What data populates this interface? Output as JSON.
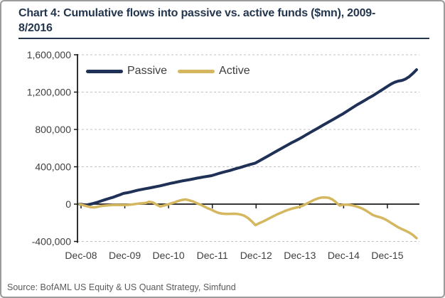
{
  "title": {
    "line1": "Chart 4: Cumulative flows into passive vs. active funds ($mn), 2009-",
    "line2": "8/2016"
  },
  "source": "Source: BofAML US Equity & US Quant Strategy, Simfund",
  "colors": {
    "title": "#23364e",
    "axis": "#1a1a1a",
    "grid": "#c0c0c0",
    "tick_text": "#3f3f3f",
    "source_text": "#5a5a5a",
    "border": "#9b9b9b",
    "passive": "#1f3156",
    "active": "#d4b75f"
  },
  "legend": {
    "passive_label": "Passive",
    "active_label": "Active",
    "position": "top-left"
  },
  "chart_data": {
    "type": "line",
    "title": "Chart 4: Cumulative flows into passive vs. active funds ($mn), 2009-8/2016",
    "xlabel": "",
    "ylabel": "",
    "frequency": "monthly",
    "x_start": "Dec-08",
    "x_end": "Aug-16",
    "xlabels": [
      "Dec-08",
      "Dec-09",
      "Dec-10",
      "Dec-11",
      "Dec-12",
      "Dec-13",
      "Dec-14",
      "Dec-15"
    ],
    "ylim": [
      -400000,
      1600000
    ],
    "yticks": [
      1600000,
      1200000,
      800000,
      400000,
      0,
      -400000
    ],
    "ytick_labels": [
      "1,600,000",
      "1,200,000",
      "800,000",
      "400,000",
      "0",
      "-400,000"
    ],
    "grid": "dashed-horizontal",
    "legend_position": "top-left",
    "series": [
      {
        "name": "Passive",
        "color": "#1f3156",
        "values": [
          0,
          -5000,
          -8000,
          0,
          10000,
          22000,
          35000,
          48000,
          60000,
          72000,
          86000,
          100000,
          115000,
          122000,
          130000,
          140000,
          150000,
          158000,
          165000,
          172000,
          180000,
          188000,
          196000,
          205000,
          215000,
          224000,
          232000,
          240000,
          248000,
          255000,
          262000,
          270000,
          278000,
          285000,
          292000,
          298000,
          305000,
          316000,
          328000,
          340000,
          350000,
          360000,
          372000,
          383000,
          394000,
          406000,
          418000,
          429000,
          440000,
          462000,
          484000,
          506000,
          528000,
          550000,
          572000,
          594000,
          616000,
          638000,
          660000,
          680000,
          700000,
          722000,
          745000,
          768000,
          790000,
          812000,
          835000,
          858000,
          880000,
          902000,
          925000,
          948000,
          970000,
          995000,
          1020000,
          1045000,
          1070000,
          1092000,
          1115000,
          1138000,
          1160000,
          1185000,
          1210000,
          1235000,
          1260000,
          1285000,
          1305000,
          1318000,
          1325000,
          1340000,
          1365000,
          1400000,
          1440000
        ]
      },
      {
        "name": "Active",
        "color": "#d4b75f",
        "values": [
          0,
          -12000,
          -22000,
          -32000,
          -35000,
          -28000,
          -20000,
          -15000,
          -12000,
          -10000,
          -8000,
          -10000,
          -10000,
          -8000,
          -5000,
          0,
          5000,
          8000,
          12000,
          25000,
          18000,
          -5000,
          -25000,
          -15000,
          -5000,
          8000,
          20000,
          35000,
          45000,
          50000,
          40000,
          28000,
          10000,
          -5000,
          -25000,
          -45000,
          -60000,
          -80000,
          -95000,
          -102000,
          -105000,
          -105000,
          -103000,
          -105000,
          -112000,
          -125000,
          -150000,
          -185000,
          -225000,
          -205000,
          -188000,
          -168000,
          -148000,
          -128000,
          -108000,
          -92000,
          -75000,
          -60000,
          -48000,
          -38000,
          -30000,
          -15000,
          5000,
          25000,
          45000,
          60000,
          70000,
          72000,
          68000,
          50000,
          20000,
          -15000,
          -5000,
          -5000,
          -10000,
          -18000,
          -30000,
          -45000,
          -65000,
          -90000,
          -115000,
          -130000,
          -140000,
          -155000,
          -175000,
          -200000,
          -225000,
          -248000,
          -268000,
          -285000,
          -305000,
          -330000,
          -365000
        ]
      }
    ]
  }
}
